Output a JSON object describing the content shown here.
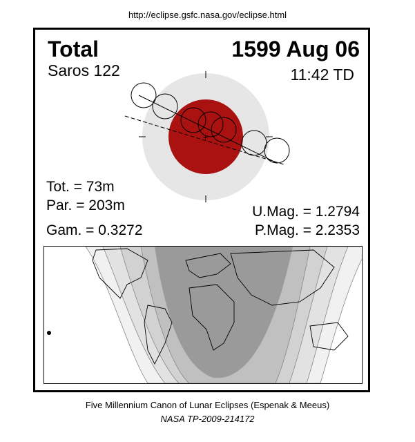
{
  "header": {
    "url": "http://eclipse.gsfc.nasa.gov/eclipse.html"
  },
  "eclipse": {
    "type": "Total",
    "date": "1599 Aug 06",
    "saros": "Saros 122",
    "time": "11:42 TD",
    "tot": "Tot. =  73m",
    "par": "Par. = 203m",
    "gam": "Gam. = 0.3272",
    "umag": "U.Mag. = 1.2794",
    "pmag": "P.Mag. = 2.2353"
  },
  "colors": {
    "umbra": "#aa1111",
    "penumbra": "#e6e6e6",
    "map_total": "#9a9a9a",
    "map_partial": "#cccccc",
    "map_penumbral": "#eeeeee"
  },
  "footer": {
    "line1": "Five Millennium Canon of Lunar Eclipses (Espenak & Meeus)",
    "line2": "NASA TP-2009-214172"
  }
}
